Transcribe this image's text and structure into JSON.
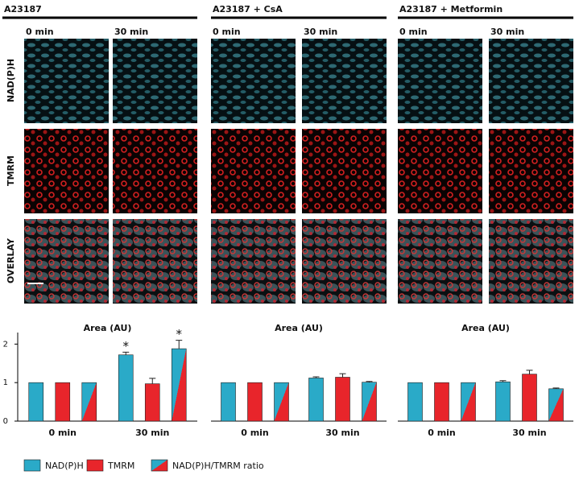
{
  "groups": [
    {
      "title": "A23187",
      "times": [
        "0 min",
        "30 min"
      ]
    },
    {
      "title": "A23187 + CsA",
      "times": [
        "0 min",
        "30 min"
      ]
    },
    {
      "title": "A23187 + Metformin",
      "times": [
        "0 min",
        "30 min"
      ]
    }
  ],
  "row_labels": [
    "NAD(P)H",
    "TMRM",
    "OVERLAY"
  ],
  "chart_data": [
    {
      "type": "bar",
      "title": "Area (AU)",
      "categories": [
        "0 min",
        "30 min"
      ],
      "ylim": [
        0,
        2.3
      ],
      "yticks": [
        0,
        1,
        2
      ],
      "series": [
        {
          "name": "NAD(P)H",
          "color": "#2aaac8",
          "values": [
            1,
            1.72
          ],
          "errors": [
            null,
            0.07
          ],
          "significance": [
            null,
            "*"
          ]
        },
        {
          "name": "TMRM",
          "color": "#e8252b",
          "values": [
            1,
            0.97
          ],
          "errors": [
            null,
            0.14
          ]
        },
        {
          "name": "NAD(P)H/TMRM ratio",
          "color": "#2aaac8",
          "color2": "#e8252b",
          "values": [
            1,
            1.88
          ],
          "errors": [
            null,
            0.22
          ],
          "significance": [
            null,
            "*"
          ]
        }
      ]
    },
    {
      "type": "bar",
      "title": "Area (AU)",
      "categories": [
        "0 min",
        "30 min"
      ],
      "ylim": [
        0,
        2.3
      ],
      "series": [
        {
          "name": "NAD(P)H",
          "color": "#2aaac8",
          "values": [
            1,
            1.12
          ],
          "errors": [
            null,
            0.03
          ]
        },
        {
          "name": "TMRM",
          "color": "#e8252b",
          "values": [
            1,
            1.14
          ],
          "errors": [
            null,
            0.09
          ]
        },
        {
          "name": "NAD(P)H/TMRM ratio",
          "color": "#2aaac8",
          "color2": "#e8252b",
          "values": [
            1,
            1.01
          ],
          "errors": [
            null,
            0.02
          ]
        }
      ]
    },
    {
      "type": "bar",
      "title": "Area (AU)",
      "categories": [
        "0 min",
        "30 min"
      ],
      "ylim": [
        0,
        2.3
      ],
      "series": [
        {
          "name": "NAD(P)H",
          "color": "#2aaac8",
          "values": [
            1,
            1.02
          ],
          "errors": [
            null,
            0.03
          ]
        },
        {
          "name": "TMRM",
          "color": "#e8252b",
          "values": [
            1,
            1.22
          ],
          "errors": [
            null,
            0.1
          ]
        },
        {
          "name": "NAD(P)H/TMRM ratio",
          "color": "#2aaac8",
          "color2": "#e8252b",
          "values": [
            1,
            0.84
          ],
          "errors": [
            null,
            0.02
          ]
        }
      ]
    }
  ]
}
